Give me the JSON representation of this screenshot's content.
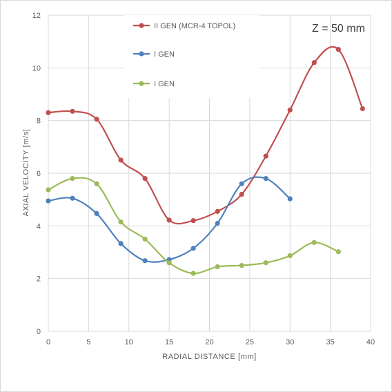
{
  "chart_data": {
    "type": "scatter",
    "title": "",
    "annotation": "Z = 50 mm",
    "xlabel": "RADIAL DISTANCE [mm]",
    "ylabel": "AXIAL VELOCITY [m/s]",
    "xlim": [
      0,
      40
    ],
    "ylim": [
      0,
      12
    ],
    "xticks": [
      0,
      5,
      10,
      15,
      20,
      25,
      30,
      35,
      40
    ],
    "yticks": [
      0,
      2,
      4,
      6,
      8,
      10,
      12
    ],
    "grid": true,
    "legend_position": "top-center",
    "smooth": true,
    "series": [
      {
        "name": "II GEN (MCR-4 TOPOL)",
        "color": "#c0504d",
        "x": [
          0,
          3,
          6,
          9,
          12,
          15,
          18,
          21,
          24,
          27,
          30,
          33,
          36,
          39
        ],
        "y": [
          8.3,
          8.35,
          8.05,
          6.5,
          5.8,
          4.22,
          4.2,
          4.55,
          5.2,
          6.65,
          8.4,
          10.2,
          10.7,
          8.45
        ]
      },
      {
        "name": "I GEN",
        "color": "#4f81bd",
        "x": [
          0,
          3,
          6,
          9,
          12,
          15,
          18,
          21,
          24,
          27,
          30
        ],
        "y": [
          4.95,
          5.05,
          4.47,
          3.33,
          2.68,
          2.72,
          3.15,
          4.1,
          5.6,
          5.8,
          5.03
        ]
      },
      {
        "name": "I GEN",
        "color": "#9bbb59",
        "x": [
          0,
          3,
          6,
          9,
          12,
          15,
          18,
          21,
          24,
          27,
          30,
          33,
          36
        ],
        "y": [
          5.37,
          5.8,
          5.6,
          4.15,
          3.5,
          2.6,
          2.2,
          2.45,
          2.5,
          2.6,
          2.87,
          3.37,
          3.02
        ]
      }
    ]
  }
}
